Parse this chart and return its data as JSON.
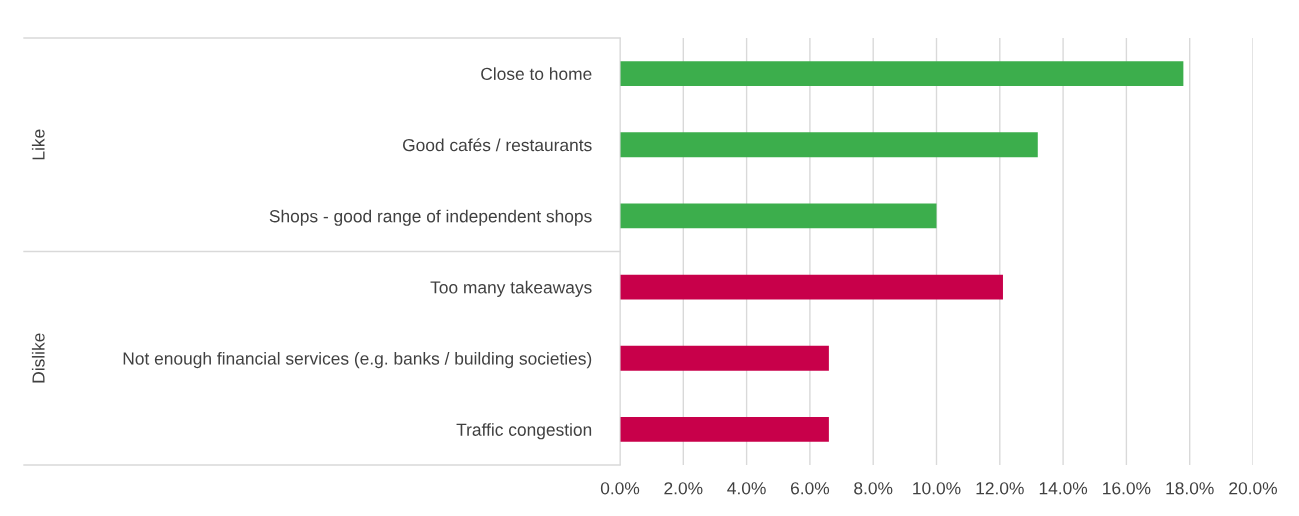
{
  "chart_data": {
    "type": "bar",
    "orientation": "horizontal",
    "categories": [
      "Close to home",
      "Good cafés / restaurants",
      "Shops - good range of independent shops",
      "Too many takeaways",
      "Not enough financial services (e.g. banks / building societies)",
      "Traffic congestion"
    ],
    "values": [
      17.8,
      13.2,
      10.0,
      12.1,
      6.6,
      6.6
    ],
    "colors": [
      "#3cae4c",
      "#3cae4c",
      "#3cae4c",
      "#c8004a",
      "#c8004a",
      "#c8004a"
    ],
    "xlim": [
      0,
      20
    ],
    "xticks": [
      {
        "value": 0,
        "label": "0.0%"
      },
      {
        "value": 2,
        "label": "2.0%"
      },
      {
        "value": 4,
        "label": "4.0%"
      },
      {
        "value": 6,
        "label": "6.0%"
      },
      {
        "value": 8,
        "label": "8.0%"
      },
      {
        "value": 10,
        "label": "10.0%"
      },
      {
        "value": 12,
        "label": "12.0%"
      },
      {
        "value": 14,
        "label": "14.0%"
      },
      {
        "value": 16,
        "label": "16.0%"
      },
      {
        "value": 18,
        "label": "18.0%"
      },
      {
        "value": 20,
        "label": "20.0%"
      }
    ],
    "annotations": [
      "Like",
      "Dislike"
    ],
    "grid": "x",
    "legend": false
  }
}
